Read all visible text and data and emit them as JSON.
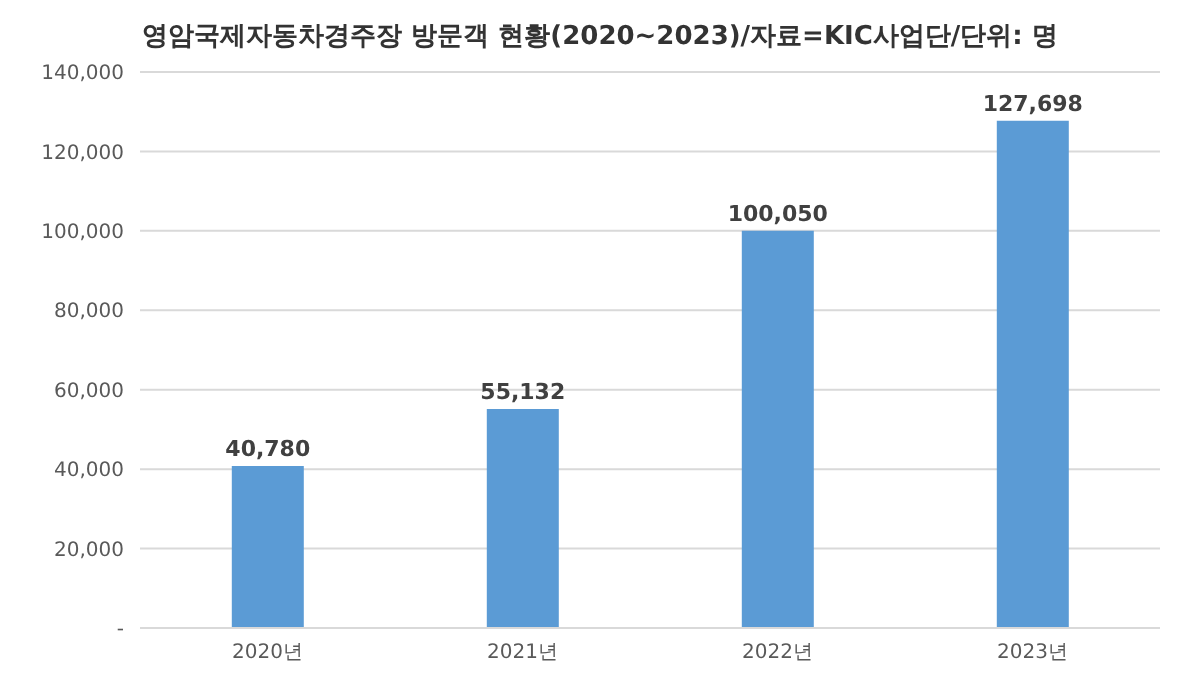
{
  "chart_data": {
    "type": "bar",
    "title": "영암국제자동차경주장 방문객 현황(2020~2023)/자료=KIC사업단/단위: 명",
    "categories": [
      "2020년",
      "2021년",
      "2022년",
      "2023년"
    ],
    "values": [
      40780,
      55132,
      100050,
      127698
    ],
    "color": "#5b9bd5",
    "ylim": [
      0,
      140000
    ],
    "yticks": [
      {
        "value": 0,
        "label": "-"
      },
      {
        "value": 20000,
        "label": "20,000"
      },
      {
        "value": 40000,
        "label": "40,000"
      },
      {
        "value": 60000,
        "label": "60,000"
      },
      {
        "value": 80000,
        "label": "80,000"
      },
      {
        "value": 100000,
        "label": "100,000"
      },
      {
        "value": 120000,
        "label": "120,000"
      },
      {
        "value": 140000,
        "label": "140,000"
      }
    ],
    "value_labels": [
      "40,780",
      "55,132",
      "100,050",
      "127,698"
    ],
    "grid": "y"
  }
}
